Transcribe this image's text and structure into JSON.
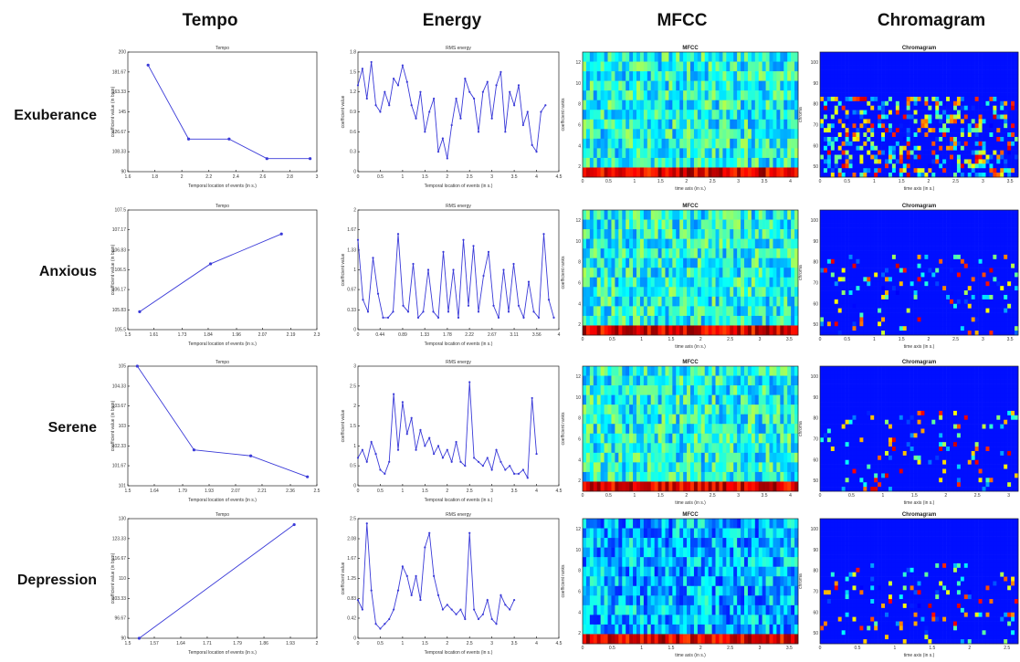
{
  "column_titles": [
    "Tempo",
    "Energy",
    "MFCC",
    "Chromagram"
  ],
  "row_labels": [
    "Exuberance",
    "Anxious",
    "Serene",
    "Depression"
  ],
  "colors": {
    "line": "#3a3ad8",
    "heat_low": "#00008b",
    "heat_high": "#b40000"
  },
  "chart_data": [
    {
      "type": "line",
      "title": "Tempo",
      "row": "Exuberance",
      "xlabel": "Temporal location of events (in s.)",
      "ylabel": "coefficient value (in bpm)",
      "xlim": [
        1.6,
        3.0
      ],
      "ylim": [
        90,
        200
      ],
      "x": [
        1.75,
        2.05,
        2.35,
        2.63,
        2.95
      ],
      "y": [
        188,
        120,
        120,
        102,
        102
      ]
    },
    {
      "type": "line",
      "title": "Tempo",
      "row": "Anxious",
      "xlabel": "Temporal location of events (in s.)",
      "ylabel": "coefficient value (in bpm)",
      "xlim": [
        1.5,
        2.3
      ],
      "ylim": [
        105.5,
        107.5
      ],
      "x": [
        1.55,
        1.85,
        2.15
      ],
      "y": [
        105.8,
        106.6,
        107.1
      ]
    },
    {
      "type": "line",
      "title": "Tempo",
      "row": "Serene",
      "xlabel": "Temporal location of events (in s.)",
      "ylabel": "coefficient value (in bpm)",
      "xlim": [
        1.5,
        2.5
      ],
      "ylim": [
        101,
        105
      ],
      "x": [
        1.55,
        1.85,
        2.15,
        2.45
      ],
      "y": [
        105,
        102.2,
        102,
        101.3
      ]
    },
    {
      "type": "line",
      "title": "Tempo",
      "row": "Depression",
      "xlabel": "Temporal location of events (in s.)",
      "ylabel": "coefficient value (in bpm)",
      "xlim": [
        1.5,
        2.0
      ],
      "ylim": [
        90,
        130
      ],
      "x": [
        1.53,
        1.94
      ],
      "y": [
        90,
        128
      ]
    },
    {
      "type": "line",
      "title": "RMS energy",
      "row": "Exuberance",
      "xlabel": "Temporal location of events (in s.)",
      "ylabel": "coefficient value",
      "xlim": [
        0,
        4.5
      ],
      "ylim": [
        0,
        1.8
      ],
      "x": [
        0.0,
        0.1,
        0.2,
        0.3,
        0.4,
        0.5,
        0.6,
        0.7,
        0.8,
        0.9,
        1.0,
        1.1,
        1.2,
        1.3,
        1.4,
        1.5,
        1.6,
        1.7,
        1.8,
        1.9,
        2.0,
        2.1,
        2.2,
        2.3,
        2.4,
        2.5,
        2.6,
        2.7,
        2.8,
        2.9,
        3.0,
        3.1,
        3.2,
        3.3,
        3.4,
        3.5,
        3.6,
        3.7,
        3.8,
        3.9,
        4.0,
        4.1,
        4.2
      ],
      "y": [
        1.3,
        1.55,
        1.1,
        1.65,
        1.0,
        0.9,
        1.2,
        1.0,
        1.4,
        1.3,
        1.6,
        1.35,
        1.0,
        0.8,
        1.2,
        0.6,
        0.9,
        1.1,
        0.3,
        0.5,
        0.2,
        0.7,
        1.1,
        0.8,
        1.4,
        1.2,
        1.1,
        0.6,
        1.2,
        1.35,
        0.8,
        1.3,
        1.5,
        0.6,
        1.2,
        1.0,
        1.3,
        0.7,
        0.9,
        0.4,
        0.3,
        0.9,
        1.0
      ]
    },
    {
      "type": "line",
      "title": "RMS energy",
      "row": "Anxious",
      "xlabel": "Temporal location of events (in s.)",
      "ylabel": "coefficient value",
      "xlim": [
        0,
        4
      ],
      "ylim": [
        0,
        2
      ],
      "x": [
        0.0,
        0.1,
        0.2,
        0.3,
        0.4,
        0.5,
        0.6,
        0.7,
        0.8,
        0.9,
        1.0,
        1.1,
        1.2,
        1.3,
        1.4,
        1.5,
        1.6,
        1.7,
        1.8,
        1.9,
        2.0,
        2.1,
        2.2,
        2.3,
        2.4,
        2.5,
        2.6,
        2.7,
        2.8,
        2.9,
        3.0,
        3.1,
        3.2,
        3.3,
        3.4,
        3.5,
        3.6,
        3.7,
        3.8,
        3.9
      ],
      "y": [
        1.5,
        0.5,
        0.3,
        1.2,
        0.6,
        0.2,
        0.2,
        0.3,
        1.6,
        0.4,
        0.3,
        1.1,
        0.2,
        0.3,
        1.0,
        0.3,
        0.2,
        1.3,
        0.3,
        1.0,
        0.2,
        1.5,
        0.4,
        1.4,
        0.3,
        0.9,
        1.3,
        0.4,
        0.2,
        1.0,
        0.3,
        1.1,
        0.4,
        0.2,
        0.8,
        0.3,
        0.2,
        1.6,
        0.5,
        0.2
      ]
    },
    {
      "type": "line",
      "title": "RMS energy",
      "row": "Serene",
      "xlabel": "Temporal location of events (in s.)",
      "ylabel": "coefficient value",
      "xlim": [
        0,
        4.5
      ],
      "ylim": [
        0,
        3
      ],
      "x": [
        0.0,
        0.1,
        0.2,
        0.3,
        0.4,
        0.5,
        0.6,
        0.7,
        0.8,
        0.9,
        1.0,
        1.1,
        1.2,
        1.3,
        1.4,
        1.5,
        1.6,
        1.7,
        1.8,
        1.9,
        2.0,
        2.1,
        2.2,
        2.3,
        2.4,
        2.5,
        2.6,
        2.7,
        2.8,
        2.9,
        3.0,
        3.1,
        3.2,
        3.3,
        3.4,
        3.5,
        3.6,
        3.7,
        3.8,
        3.9,
        4.0
      ],
      "y": [
        0.7,
        0.9,
        0.6,
        1.1,
        0.8,
        0.4,
        0.3,
        0.6,
        2.3,
        0.9,
        2.1,
        1.3,
        1.7,
        0.9,
        1.4,
        1.0,
        1.2,
        0.8,
        1.0,
        0.7,
        0.9,
        0.6,
        1.1,
        0.6,
        0.5,
        2.6,
        0.7,
        0.6,
        0.5,
        0.7,
        0.4,
        0.9,
        0.6,
        0.4,
        0.5,
        0.3,
        0.3,
        0.4,
        0.2,
        2.2,
        0.8
      ]
    },
    {
      "type": "line",
      "title": "RMS energy",
      "row": "Depression",
      "xlabel": "Temporal location of events (in s.)",
      "ylabel": "coefficient value",
      "xlim": [
        0,
        4.5
      ],
      "ylim": [
        0,
        2.5
      ],
      "x": [
        0.0,
        0.1,
        0.2,
        0.3,
        0.4,
        0.5,
        0.6,
        0.7,
        0.8,
        0.9,
        1.0,
        1.1,
        1.2,
        1.3,
        1.4,
        1.5,
        1.6,
        1.7,
        1.8,
        1.9,
        2.0,
        2.1,
        2.2,
        2.3,
        2.4,
        2.5,
        2.6,
        2.7,
        2.8,
        2.9,
        3.0,
        3.1,
        3.2,
        3.3,
        3.4,
        3.5
      ],
      "y": [
        0.8,
        0.6,
        2.4,
        1.0,
        0.3,
        0.2,
        0.3,
        0.4,
        0.6,
        1.0,
        1.5,
        1.3,
        0.9,
        1.3,
        0.8,
        1.9,
        2.2,
        1.3,
        0.9,
        0.6,
        0.7,
        0.6,
        0.5,
        0.6,
        0.4,
        2.2,
        0.6,
        0.4,
        0.5,
        0.8,
        0.4,
        0.3,
        0.9,
        0.7,
        0.6,
        0.8
      ]
    },
    {
      "type": "heatmap",
      "title": "MFCC",
      "row": "Exuberance",
      "xlabel": "time axis (in s.)",
      "ylabel": "coefficient ranks",
      "xticks": [
        "0",
        "0.5",
        "1",
        "1.5",
        "2",
        "2.5",
        "3",
        "3.5",
        "4"
      ],
      "yticks": [
        "2",
        "4",
        "6",
        "8",
        "10",
        "12"
      ]
    },
    {
      "type": "heatmap",
      "title": "MFCC",
      "row": "Anxious",
      "xlabel": "time axis (in s.)",
      "ylabel": "coefficient ranks",
      "xticks": [
        "0",
        "0.5",
        "1",
        "1.5",
        "2",
        "2.5",
        "3",
        "3.5"
      ],
      "yticks": [
        "2",
        "4",
        "6",
        "8",
        "10",
        "12"
      ]
    },
    {
      "type": "heatmap",
      "title": "MFCC",
      "row": "Serene",
      "xlabel": "time axis (in s.)",
      "ylabel": "coefficient ranks",
      "xticks": [
        "0",
        "0.5",
        "1",
        "1.5",
        "2",
        "2.5",
        "3",
        "3.5",
        "4"
      ],
      "yticks": [
        "2",
        "4",
        "6",
        "8",
        "10",
        "12"
      ]
    },
    {
      "type": "heatmap",
      "title": "MFCC",
      "row": "Depression",
      "xlabel": "time axis (in s.)",
      "ylabel": "coefficient ranks",
      "xticks": [
        "0",
        "0.5",
        "1",
        "1.5",
        "2",
        "2.5",
        "3",
        "3.5"
      ],
      "yticks": [
        "2",
        "4",
        "6",
        "8",
        "10",
        "12"
      ]
    },
    {
      "type": "heatmap",
      "title": "Chromagram",
      "row": "Exuberance",
      "xlabel": "time axis (in s.)",
      "ylabel": "chroma",
      "xticks": [
        "0",
        "0.5",
        "1",
        "1.5",
        "2",
        "2.5",
        "3",
        "3.5"
      ],
      "yticks": [
        "50",
        "60",
        "70",
        "80",
        "90",
        "100"
      ]
    },
    {
      "type": "heatmap",
      "title": "Chromagram",
      "row": "Anxious",
      "xlabel": "time axis (in s.)",
      "ylabel": "chroma",
      "xticks": [
        "0",
        "0.5",
        "1",
        "1.5",
        "2",
        "2.5",
        "3",
        "3.5"
      ],
      "yticks": [
        "50",
        "60",
        "70",
        "80",
        "90",
        "100"
      ]
    },
    {
      "type": "heatmap",
      "title": "Chromagram",
      "row": "Serene",
      "xlabel": "time axis (in s.)",
      "ylabel": "chroma",
      "xticks": [
        "0",
        "0.5",
        "1",
        "1.5",
        "2",
        "2.5",
        "3"
      ],
      "yticks": [
        "50",
        "60",
        "70",
        "80",
        "90",
        "100"
      ]
    },
    {
      "type": "heatmap",
      "title": "Chromagram",
      "row": "Depression",
      "xlabel": "time axis (in s.)",
      "ylabel": "chroma",
      "xticks": [
        "0",
        "0.5",
        "1",
        "1.5",
        "2",
        "2.5"
      ],
      "yticks": [
        "50",
        "60",
        "70",
        "80",
        "90",
        "100"
      ]
    }
  ]
}
